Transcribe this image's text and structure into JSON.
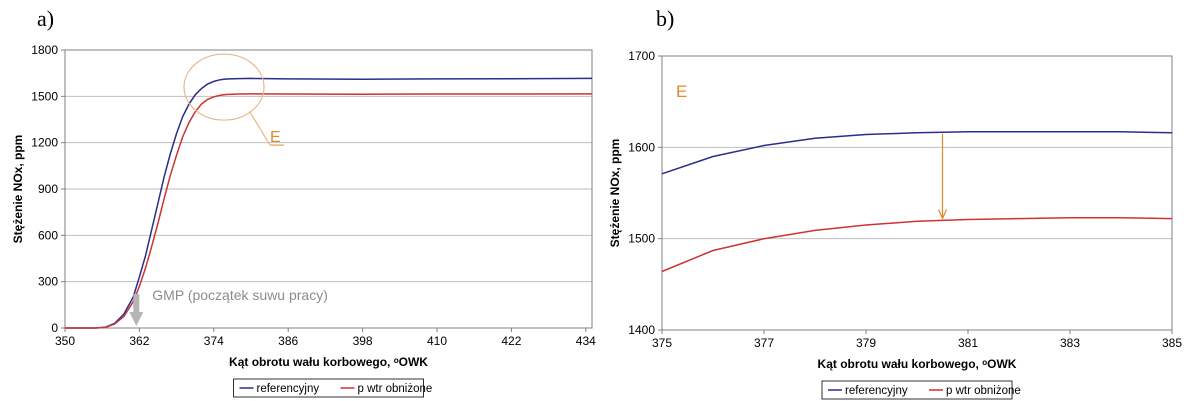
{
  "panels": {
    "a": "a)",
    "b": "b)"
  },
  "chart_data": [
    {
      "type": "line",
      "xlabel": "Kąt obrotu wału korbowego, ᵒOWK",
      "ylabel": "Stężenie NOx, ppm",
      "xlim": [
        350,
        435
      ],
      "ylim": [
        0,
        1800
      ],
      "x_ticks": [
        350,
        362,
        374,
        386,
        398,
        410,
        422,
        434
      ],
      "y_ticks": [
        0,
        300,
        600,
        900,
        1200,
        1500,
        1800
      ],
      "grid": "horizontal",
      "legend_position": "bottom",
      "series": [
        {
          "name": "referencyjny",
          "color": "#2b2d8c",
          "points": [
            [
              350,
              0
            ],
            [
              355,
              0
            ],
            [
              356.5,
              5
            ],
            [
              358,
              30
            ],
            [
              359.5,
              90
            ],
            [
              361,
              200
            ],
            [
              362,
              330
            ],
            [
              363,
              470
            ],
            [
              364,
              640
            ],
            [
              365,
              810
            ],
            [
              366,
              980
            ],
            [
              367,
              1130
            ],
            [
              368,
              1260
            ],
            [
              369,
              1370
            ],
            [
              370,
              1450
            ],
            [
              371,
              1510
            ],
            [
              372,
              1550
            ],
            [
              373,
              1580
            ],
            [
              374,
              1597
            ],
            [
              375,
              1607
            ],
            [
              376,
              1612
            ],
            [
              378,
              1615
            ],
            [
              380,
              1616
            ],
            [
              386,
              1613
            ],
            [
              398,
              1611
            ],
            [
              410,
              1613
            ],
            [
              422,
              1614
            ],
            [
              435,
              1616
            ]
          ]
        },
        {
          "name": "p wtr obniżone",
          "color": "#cc3333",
          "points": [
            [
              350,
              0
            ],
            [
              355,
              0
            ],
            [
              356.5,
              4
            ],
            [
              358,
              25
            ],
            [
              359.5,
              75
            ],
            [
              361,
              170
            ],
            [
              362,
              270
            ],
            [
              363,
              390
            ],
            [
              364,
              530
            ],
            [
              365,
              680
            ],
            [
              366,
              840
            ],
            [
              367,
              990
            ],
            [
              368,
              1120
            ],
            [
              369,
              1240
            ],
            [
              370,
              1330
            ],
            [
              371,
              1400
            ],
            [
              372,
              1450
            ],
            [
              373,
              1480
            ],
            [
              374,
              1497
            ],
            [
              375,
              1507
            ],
            [
              376,
              1512
            ],
            [
              378,
              1515
            ],
            [
              380,
              1516
            ],
            [
              386,
              1515
            ],
            [
              398,
              1514
            ],
            [
              410,
              1515
            ],
            [
              422,
              1515
            ],
            [
              435,
              1516
            ]
          ]
        }
      ],
      "annotations": {
        "gmp": "GMP (początek suwu pracy)",
        "gmp_x": 361.5,
        "e_label": "E"
      }
    },
    {
      "type": "line",
      "xlabel": "Kąt obrotu wału korbowego, ᵒOWK",
      "ylabel": "Stężenie NOx, ppm",
      "xlim": [
        375,
        385
      ],
      "ylim": [
        1400,
        1700
      ],
      "x_ticks": [
        375,
        377,
        379,
        381,
        383,
        385
      ],
      "y_ticks": [
        1400,
        1500,
        1600,
        1700
      ],
      "grid": "horizontal",
      "legend_position": "bottom",
      "series": [
        {
          "name": "referencyjny",
          "color": "#2b2d8c",
          "points": [
            [
              375,
              1571
            ],
            [
              376,
              1590
            ],
            [
              377,
              1602
            ],
            [
              378,
              1610
            ],
            [
              379,
              1614
            ],
            [
              380,
              1616
            ],
            [
              381,
              1617
            ],
            [
              382,
              1617
            ],
            [
              383,
              1617
            ],
            [
              384,
              1617
            ],
            [
              385,
              1616
            ]
          ]
        },
        {
          "name": "p wtr obniżone",
          "color": "#cc3333",
          "points": [
            [
              375,
              1464
            ],
            [
              376,
              1487
            ],
            [
              377,
              1500
            ],
            [
              378,
              1509
            ],
            [
              379,
              1515
            ],
            [
              380,
              1519
            ],
            [
              381,
              1521
            ],
            [
              382,
              1522
            ],
            [
              383,
              1523
            ],
            [
              384,
              1523
            ],
            [
              385,
              1522
            ]
          ]
        }
      ],
      "annotations": {
        "e_label": "E",
        "arrow_x": 380.5,
        "arrow_from": 1617,
        "arrow_to": 1521
      }
    }
  ]
}
